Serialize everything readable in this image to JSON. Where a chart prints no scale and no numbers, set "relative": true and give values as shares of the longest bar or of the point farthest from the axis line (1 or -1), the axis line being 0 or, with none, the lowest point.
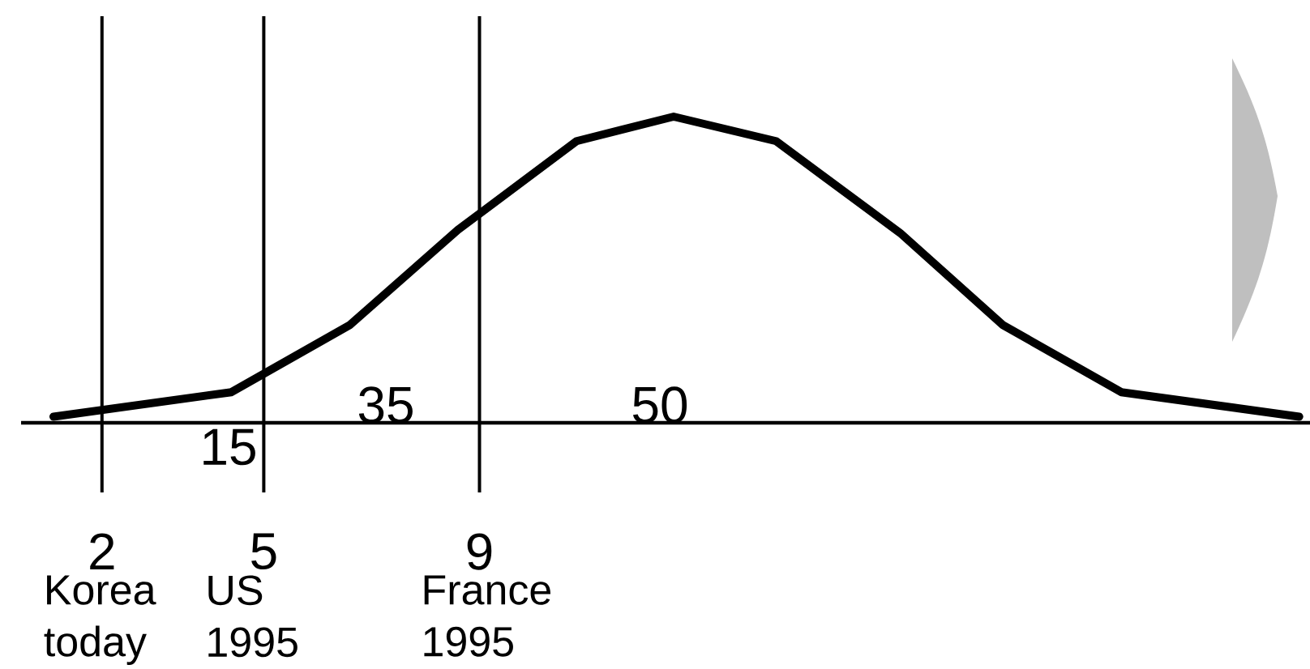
{
  "chart_data": {
    "type": "line",
    "relative": true,
    "color": "#000000",
    "line_style": "solid",
    "x": [
      1.1,
      4.4,
      6.6,
      8.6,
      10.8,
      12.6,
      14.5,
      16.8,
      18.7,
      20.9,
      24.2
    ],
    "values": [
      0.02,
      0.1,
      0.32,
      0.63,
      0.92,
      1,
      0.92,
      0.62,
      0.32,
      0.1,
      0.02
    ],
    "xlim": [
      0.5,
      24.4
    ],
    "xticks": [
      2,
      5,
      9
    ],
    "ref_lines": [
      {
        "axis": "x",
        "value": 2,
        "label": "Korea today"
      },
      {
        "axis": "x",
        "value": 5,
        "label": "US 1995"
      },
      {
        "axis": "x",
        "value": 9,
        "label": "France 1995"
      }
    ],
    "annotations": [
      "15",
      "35",
      "50"
    ]
  }
}
